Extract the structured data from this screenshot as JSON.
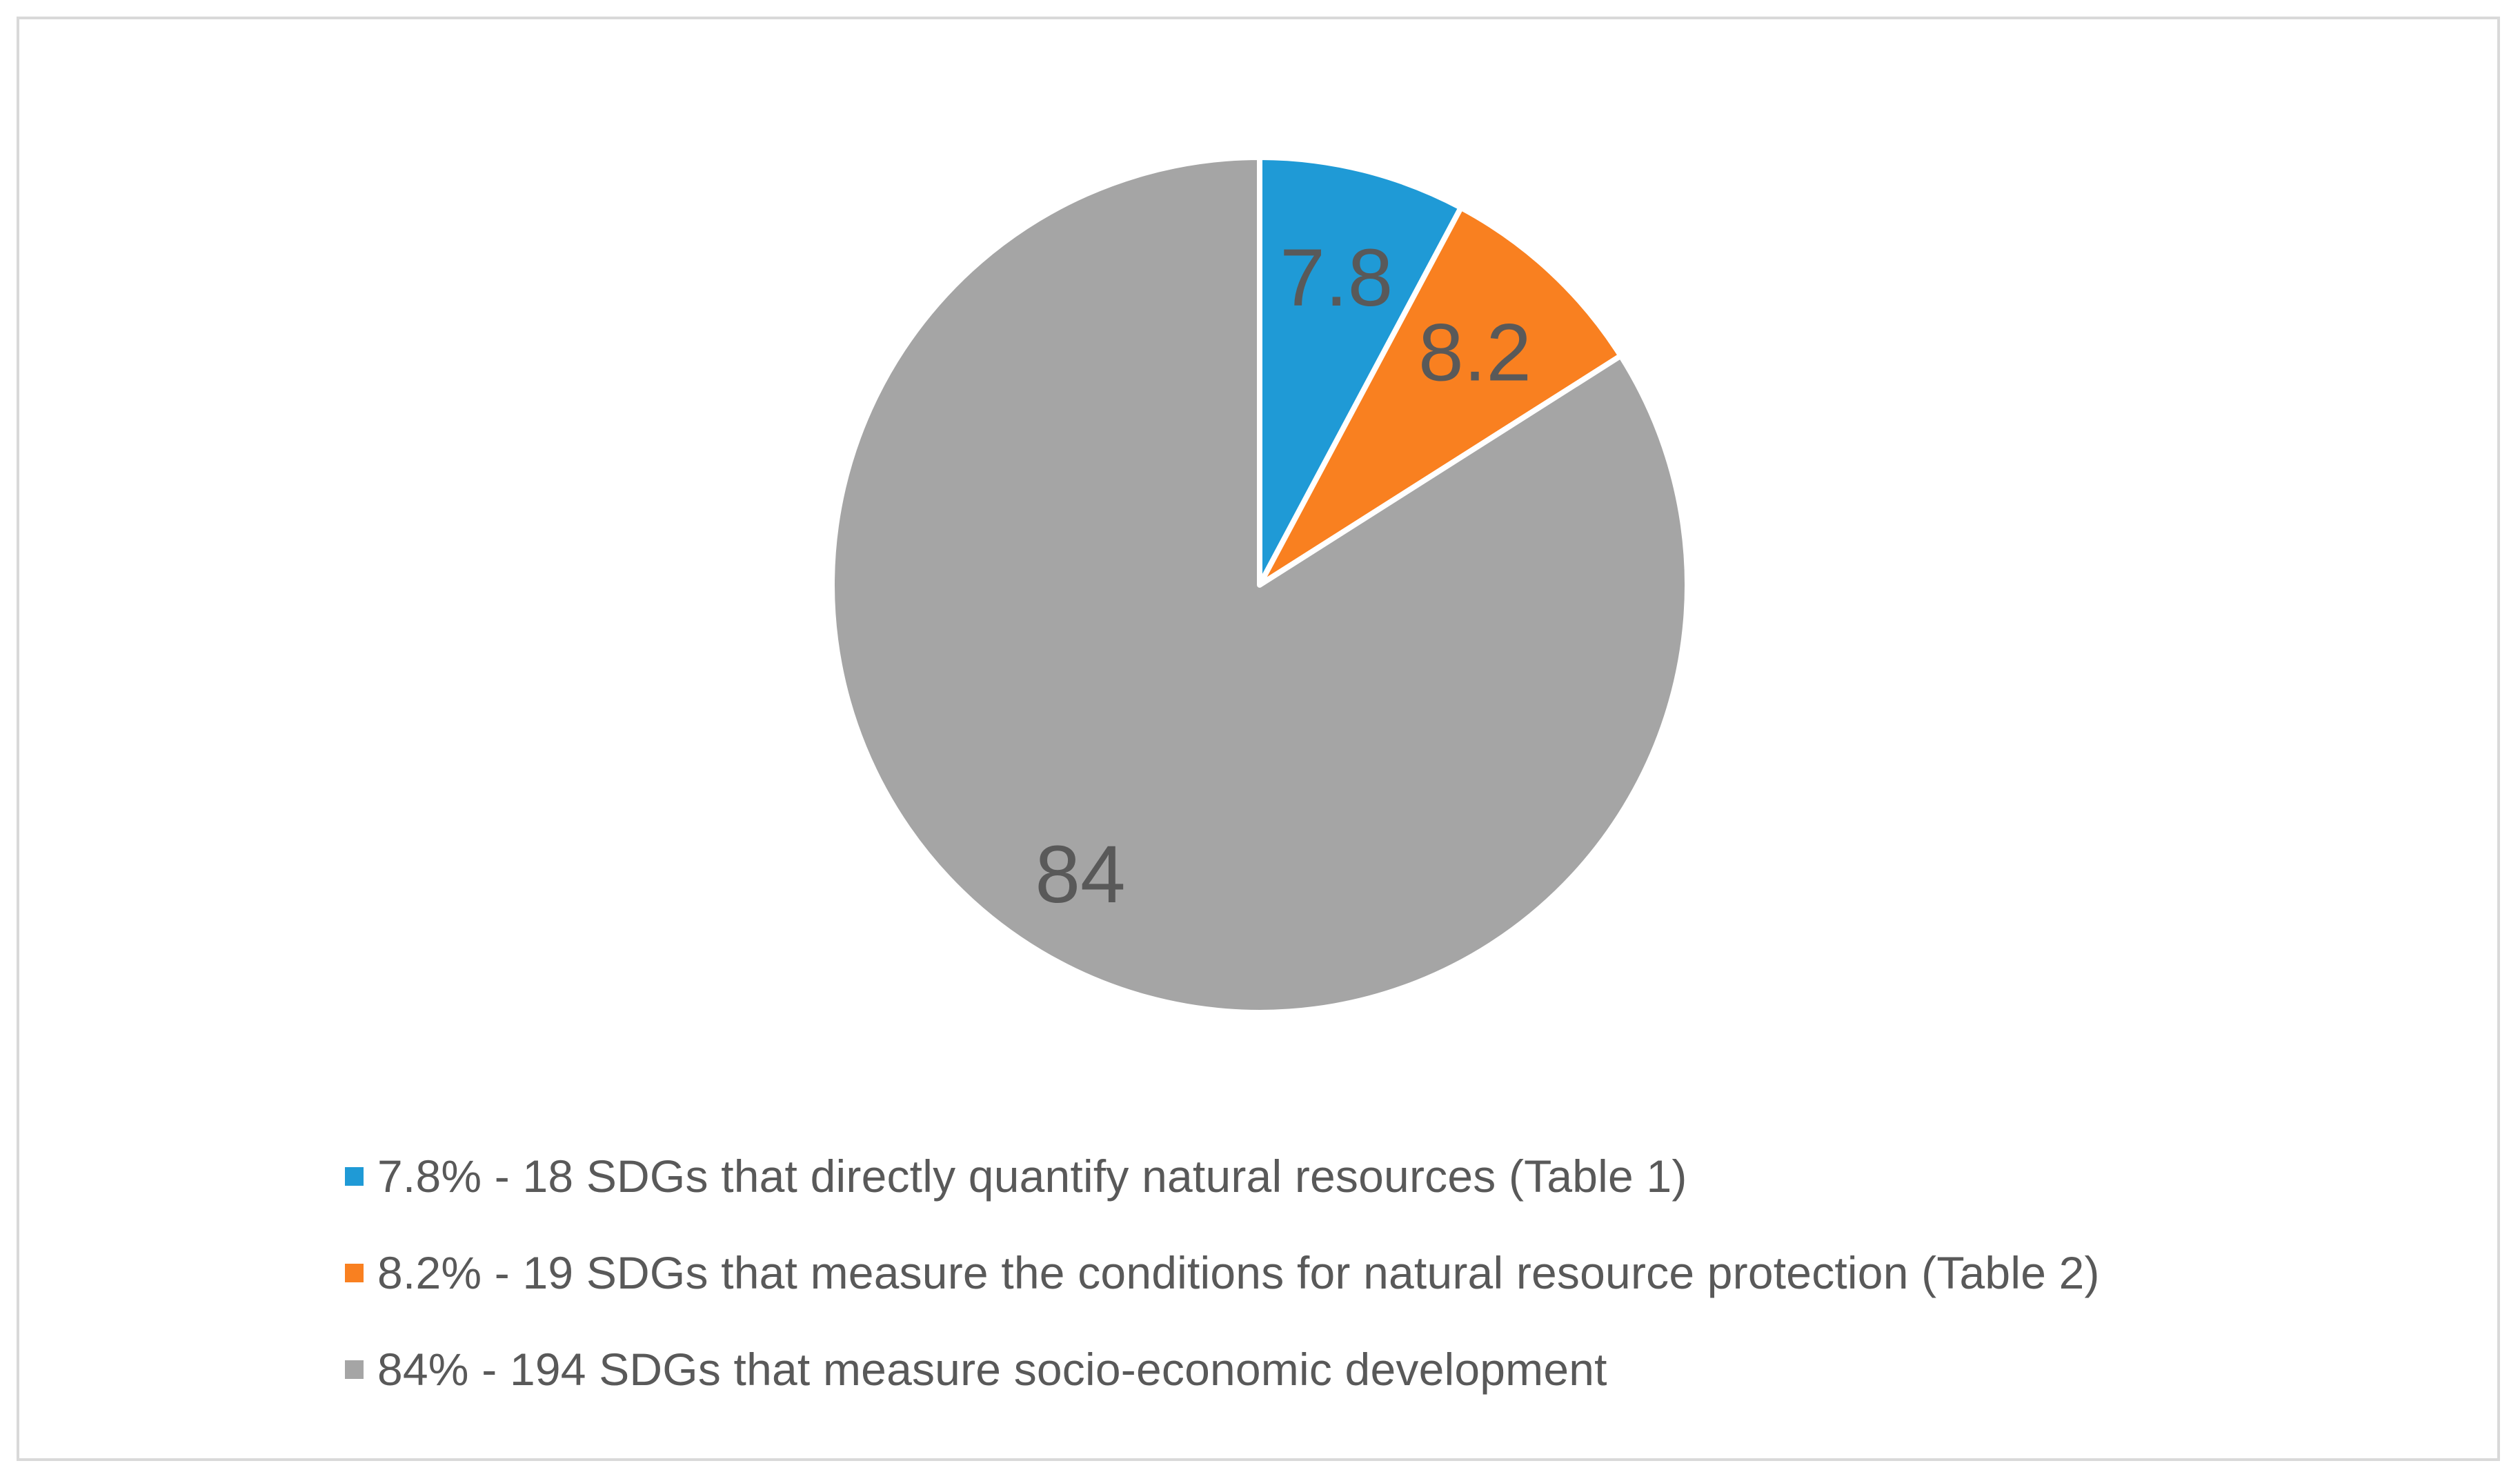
{
  "chart_data": {
    "type": "pie",
    "title": "",
    "slices": [
      {
        "label": "7.8%  - 18 SDGs that directly quantify natural resources (Table 1)",
        "value": 7.8,
        "data_label": "7.8",
        "color": "#1f9ad6"
      },
      {
        "label": "8.2% - 19 SDGs that measure the conditions for natural resource protection (Table 2)",
        "value": 8.2,
        "data_label": "8.2",
        "color": "#f98020"
      },
      {
        "label": "84% - 194 SDGs that measure socio-economic development",
        "value": 84,
        "data_label": "84",
        "color": "#a5a5a5"
      }
    ],
    "legend_position": "bottom",
    "start_angle_deg": 0,
    "direction": "clockwise"
  }
}
